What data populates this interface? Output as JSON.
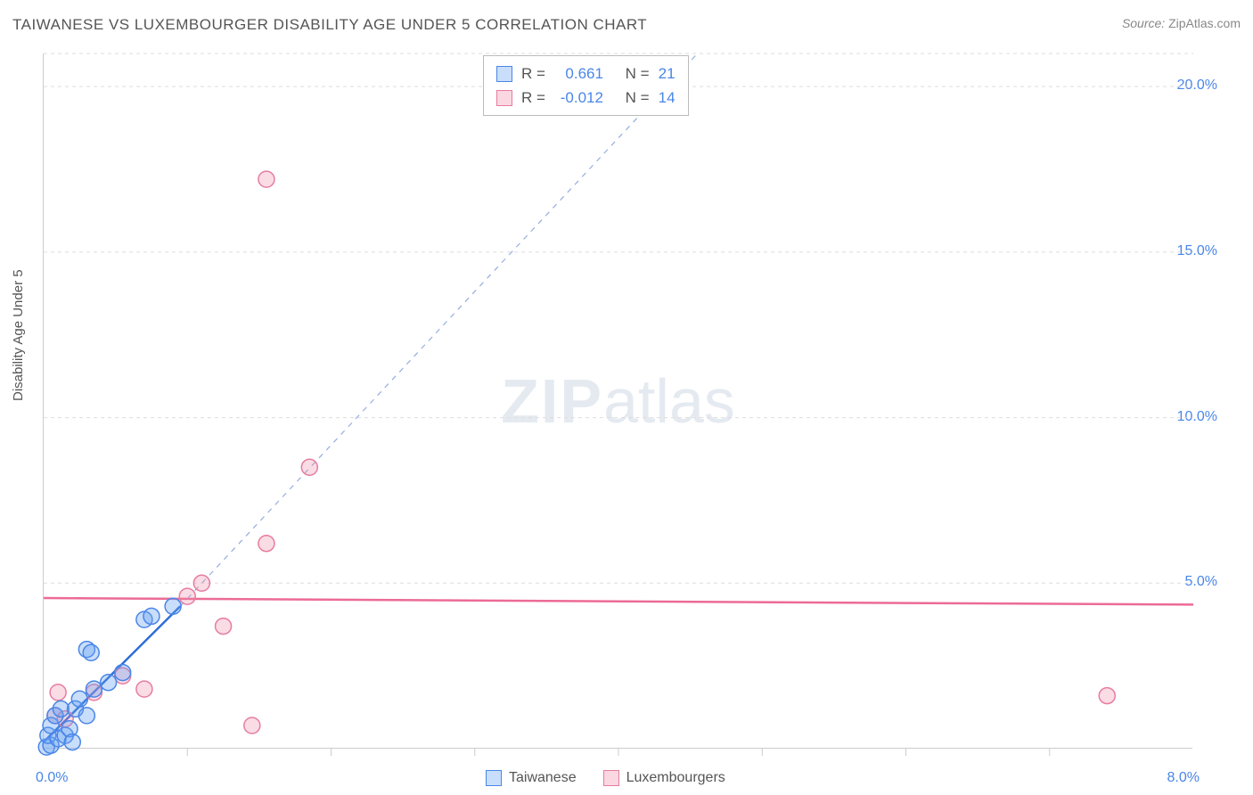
{
  "title": "TAIWANESE VS LUXEMBOURGER DISABILITY AGE UNDER 5 CORRELATION CHART",
  "source_label": "Source:",
  "source_value": "ZipAtlas.com",
  "ylabel": "Disability Age Under 5",
  "watermark_a": "ZIP",
  "watermark_b": "atlas",
  "chart": {
    "type": "scatter",
    "xlim": [
      0,
      8
    ],
    "ylim": [
      0,
      21
    ],
    "x_ticks_minor": [
      1,
      2,
      3,
      4,
      5,
      6,
      7
    ],
    "x_tick_labels": {
      "0": "0.0%",
      "8": "8.0%"
    },
    "y_grid": [
      5,
      10,
      15,
      20,
      21
    ],
    "y_tick_labels": {
      "5": "5.0%",
      "10": "10.0%",
      "15": "15.0%",
      "20": "20.0%"
    },
    "background_color": "#ffffff",
    "grid_color": "#dddddd",
    "axis_color": "#cccccc",
    "label_fontsize": 15,
    "tick_label_color": "#4a86e8",
    "tick_fontsize": 16,
    "marker_radius": 9,
    "marker_stroke_width": 1.5,
    "trend_line_width_blue": 2.5,
    "trend_line_width_pink": 2.5,
    "dashed_line_width": 1.2
  },
  "series": {
    "taiwanese": {
      "label": "Taiwanese",
      "color_fill": "rgba(100,160,240,0.35)",
      "color_stroke": "#4a86e8",
      "points": [
        [
          0.02,
          0.05
        ],
        [
          0.05,
          0.1
        ],
        [
          0.03,
          0.4
        ],
        [
          0.1,
          0.3
        ],
        [
          0.05,
          0.7
        ],
        [
          0.08,
          1.0
        ],
        [
          0.12,
          1.2
        ],
        [
          0.15,
          0.4
        ],
        [
          0.18,
          0.6
        ],
        [
          0.2,
          0.2
        ],
        [
          0.22,
          1.2
        ],
        [
          0.25,
          1.5
        ],
        [
          0.3,
          1.0
        ],
        [
          0.35,
          1.8
        ],
        [
          0.3,
          3.0
        ],
        [
          0.33,
          2.9
        ],
        [
          0.45,
          2.0
        ],
        [
          0.55,
          2.3
        ],
        [
          0.7,
          3.9
        ],
        [
          0.75,
          4.0
        ],
        [
          0.9,
          4.3
        ]
      ],
      "trend": {
        "type": "linear",
        "x1": 0,
        "y1": 0.2,
        "x2": 0.95,
        "y2": 4.3
      },
      "dashed_ext": {
        "x1": 0.95,
        "y1": 4.3,
        "x2": 4.55,
        "y2": 21
      },
      "R": "0.661",
      "N": "21"
    },
    "luxembourgers": {
      "label": "Luxembourgers",
      "color_fill": "rgba(240,140,170,0.3)",
      "color_stroke": "#e77ca0",
      "points": [
        [
          0.08,
          1.0
        ],
        [
          0.1,
          1.7
        ],
        [
          0.15,
          0.9
        ],
        [
          0.35,
          1.7
        ],
        [
          0.55,
          2.2
        ],
        [
          0.7,
          1.8
        ],
        [
          1.0,
          4.6
        ],
        [
          1.1,
          5.0
        ],
        [
          1.25,
          3.7
        ],
        [
          1.55,
          6.2
        ],
        [
          1.45,
          0.7
        ],
        [
          1.85,
          8.5
        ],
        [
          1.55,
          17.2
        ],
        [
          7.4,
          1.6
        ]
      ],
      "trend": {
        "type": "linear",
        "x1": 0,
        "y1": 4.55,
        "x2": 8,
        "y2": 4.35
      },
      "R": "-0.012",
      "N": "14"
    }
  },
  "legend_top": {
    "r_label": "R =",
    "n_label": "N ="
  }
}
